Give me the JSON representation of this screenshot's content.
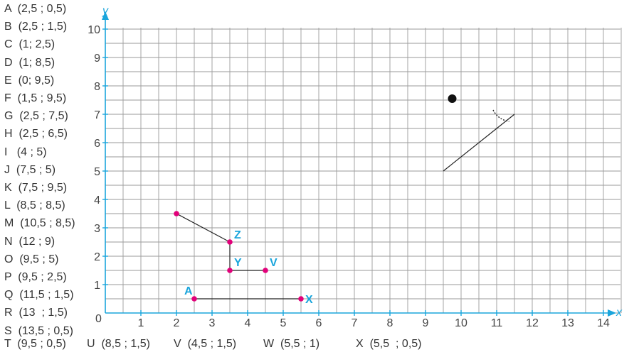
{
  "points_list": [
    "A  (2,5 ; 0,5)",
    "B  (2,5 ; 1,5)",
    "C  (1; 2,5)",
    "D  (1; 8,5)",
    "E  (0; 9,5)",
    "F  (1,5 ; 9,5)",
    "G  (2,5 ; 7,5)",
    "H  (2,5 ; 6,5)",
    "I   (4 ; 5)",
    "J  (7,5 ; 5)",
    "K  (7,5 ; 9,5)",
    "L  (8,5 ; 8,5)",
    "M  (10,5 ; 8,5)",
    "N  (12 ; 9)",
    "O  (9,5 ; 5)",
    "P  (9,5 ; 2,5)",
    "Q  (11,5 ; 1,5)",
    "R  (13  ; 1,5)",
    "S  (13,5 ; 0,5)"
  ],
  "points_bottom": [
    "T  (9,5 ; 0,5)",
    "U  (8,5 ; 1,5)",
    "V  (4,5 ; 1,5)",
    "W  (5,5 ; 1)",
    "X  (5,5  ; 0,5)"
  ],
  "axes": {
    "x_label": "x",
    "y_label": "y",
    "origin_label": "0"
  },
  "x_ticks": [
    "1",
    "2",
    "3",
    "4",
    "5",
    "6",
    "7",
    "8",
    "9",
    "10",
    "11",
    "12",
    "13",
    "14"
  ],
  "y_ticks": [
    "1",
    "2",
    "3",
    "4",
    "5",
    "6",
    "7",
    "8",
    "9",
    "10"
  ],
  "plot_labels": {
    "A": "A",
    "X": "X",
    "Y": "Y",
    "V": "V",
    "Z": "Z"
  },
  "chart_data": {
    "type": "scatter",
    "xlim": [
      0,
      14.5
    ],
    "ylim": [
      0,
      10
    ],
    "grid": true,
    "marked_points": [
      {
        "label": "A",
        "x": 2.5,
        "y": 0.5
      },
      {
        "label": "X",
        "x": 5.5,
        "y": 0.5
      },
      {
        "label": "Y",
        "x": 3.5,
        "y": 1.5
      },
      {
        "label": "V",
        "x": 4.5,
        "y": 1.5
      },
      {
        "label": "Z",
        "x": 3.5,
        "y": 2.5
      },
      {
        "label": "",
        "x": 2,
        "y": 3.5
      }
    ],
    "segments": [
      {
        "from": [
          2.5,
          0.5
        ],
        "to": [
          5.5,
          0.5
        ]
      },
      {
        "from": [
          3.5,
          1.5
        ],
        "to": [
          4.5,
          1.5
        ]
      },
      {
        "from": [
          3.5,
          1.5
        ],
        "to": [
          3.5,
          2.5
        ]
      },
      {
        "from": [
          3.5,
          2.5
        ],
        "to": [
          2,
          3.5
        ]
      },
      {
        "from": [
          9.5,
          5
        ],
        "to": [
          11.5,
          7
        ]
      }
    ],
    "eye": {
      "x": 9.75,
      "y": 7.55
    },
    "arc": [
      [
        10.9,
        7.15
      ],
      [
        11.05,
        6.8
      ],
      [
        11.35,
        6.75
      ]
    ],
    "colors": {
      "grid": "#9a9a9a",
      "axis": "#1aa5dc",
      "point": "#e2007a",
      "label": "#1aa5dc",
      "line": "#222222"
    }
  }
}
